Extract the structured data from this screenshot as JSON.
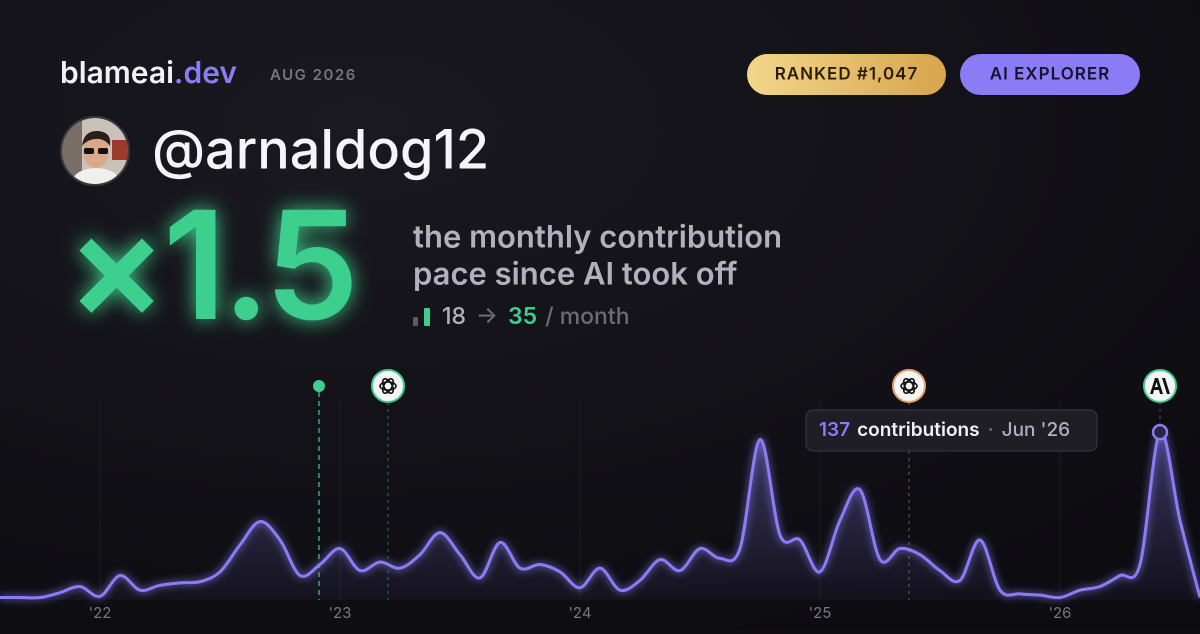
{
  "header": {
    "brand": "blameai",
    "brand_suffix": ".dev",
    "date": "AUG 2026",
    "badges": [
      "RANKED #1,047",
      "AI EXPLORER"
    ]
  },
  "profile": {
    "username": "@arnaldog12"
  },
  "headline": {
    "multiplier": "×1.5",
    "caption_lines": [
      "the monthly contribution",
      "pace since AI took off"
    ],
    "before": "18",
    "arrow": "→",
    "after": "35",
    "unit": "/ month"
  },
  "chart_data": {
    "type": "area",
    "color": "#8b7cf6",
    "categories": [
      null,
      null,
      null,
      null,
      null,
      "'22",
      null,
      null,
      null,
      null,
      null,
      null,
      null,
      null,
      null,
      null,
      null,
      "'23",
      null,
      null,
      null,
      null,
      null,
      null,
      null,
      null,
      null,
      null,
      null,
      "'24",
      null,
      null,
      null,
      null,
      null,
      null,
      null,
      null,
      null,
      null,
      null,
      "'25",
      null,
      null,
      null,
      null,
      null,
      null,
      null,
      null,
      null,
      null,
      null,
      "'26",
      null,
      null,
      null,
      null,
      null,
      null,
      null
    ],
    "values": [
      2,
      2,
      2,
      6,
      11,
      3,
      20,
      8,
      12,
      14,
      15,
      23,
      45,
      64,
      49,
      20,
      29,
      42,
      24,
      31,
      26,
      37,
      55,
      37,
      18,
      47,
      26,
      29,
      23,
      10,
      26,
      8,
      16,
      33,
      24,
      42,
      34,
      42,
      131,
      53,
      49,
      23,
      65,
      90,
      33,
      42,
      37,
      24,
      16,
      49,
      8,
      5,
      4,
      2,
      8,
      11,
      20,
      29,
      137,
      65,
      2
    ],
    "ylim": [
      0,
      160
    ],
    "tooltip": {
      "label": "contributions",
      "date": "Jun '26",
      "index": 58
    }
  }
}
